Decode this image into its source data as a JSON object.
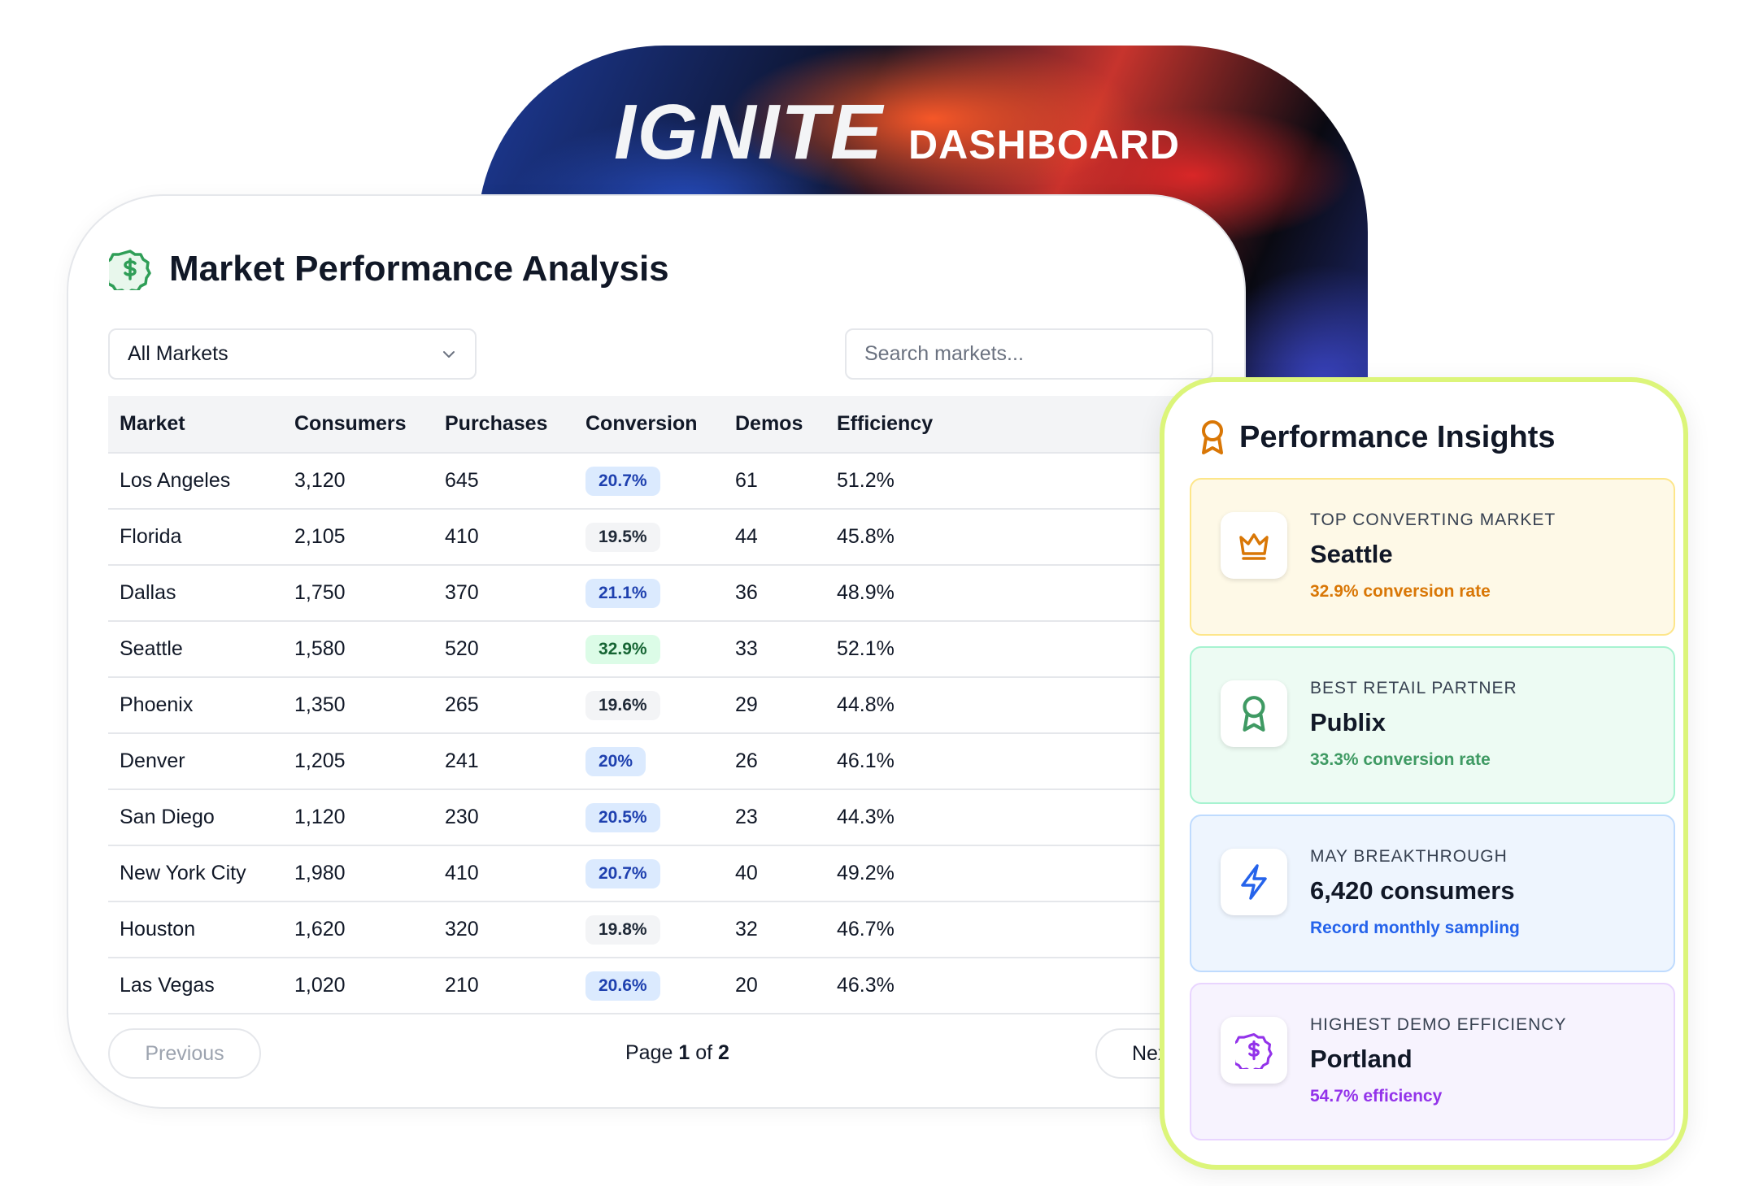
{
  "header": {
    "brand": "IGNITE",
    "subtitle": "DASHBOARD"
  },
  "main": {
    "title": "Market Performance Analysis",
    "filter": {
      "selected": "All Markets"
    },
    "search": {
      "placeholder": "Search markets..."
    },
    "columns": [
      "Market",
      "Consumers",
      "Purchases",
      "Conversion",
      "Demos",
      "Efficiency"
    ],
    "rows": [
      {
        "market": "Los Angeles",
        "consumers": "3,120",
        "purchases": "645",
        "conversion": "20.7%",
        "demos": "61",
        "efficiency": "51.2%"
      },
      {
        "market": "Florida",
        "consumers": "2,105",
        "purchases": "410",
        "conversion": "19.5%",
        "demos": "44",
        "efficiency": "45.8%"
      },
      {
        "market": "Dallas",
        "consumers": "1,750",
        "purchases": "370",
        "conversion": "21.1%",
        "demos": "36",
        "efficiency": "48.9%"
      },
      {
        "market": "Seattle",
        "consumers": "1,580",
        "purchases": "520",
        "conversion": "32.9%",
        "demos": "33",
        "efficiency": "52.1%"
      },
      {
        "market": "Phoenix",
        "consumers": "1,350",
        "purchases": "265",
        "conversion": "19.6%",
        "demos": "29",
        "efficiency": "44.8%"
      },
      {
        "market": "Denver",
        "consumers": "1,205",
        "purchases": "241",
        "conversion": "20%",
        "demos": "26",
        "efficiency": "46.1%"
      },
      {
        "market": "San Diego",
        "consumers": "1,120",
        "purchases": "230",
        "conversion": "20.5%",
        "demos": "23",
        "efficiency": "44.3%"
      },
      {
        "market": "New York City",
        "consumers": "1,980",
        "purchases": "410",
        "conversion": "20.7%",
        "demos": "40",
        "efficiency": "49.2%"
      },
      {
        "market": "Houston",
        "consumers": "1,620",
        "purchases": "320",
        "conversion": "19.8%",
        "demos": "32",
        "efficiency": "46.7%"
      },
      {
        "market": "Las Vegas",
        "consumers": "1,020",
        "purchases": "210",
        "conversion": "20.6%",
        "demos": "20",
        "efficiency": "46.3%"
      }
    ],
    "conversion_badge_styles": [
      "blue",
      "gray",
      "blue",
      "green",
      "gray",
      "blue",
      "blue",
      "blue",
      "gray",
      "blue"
    ],
    "pagination": {
      "previous": "Previous",
      "next": "Next",
      "page_word": "Page",
      "current": "1",
      "of_word": "of",
      "total": "2"
    }
  },
  "insights": {
    "title": "Performance Insights",
    "cards": [
      {
        "icon": "crown-icon",
        "label": "TOP CONVERTING MARKET",
        "value": "Seattle",
        "sub": "32.9% conversion rate",
        "accent": "#d97706",
        "bg": "#fef9e7",
        "border": "#fde68a"
      },
      {
        "icon": "award-icon",
        "label": "BEST RETAIL PARTNER",
        "value": "Publix",
        "sub": "33.3% conversion rate",
        "accent": "#3f9a63",
        "bg": "#edfbf3",
        "border": "#a7f3d0"
      },
      {
        "icon": "lightning-icon",
        "label": "MAY BREAKTHROUGH",
        "value": "6,420 consumers",
        "sub": "Record monthly sampling",
        "accent": "#2563eb",
        "bg": "#eef5fe",
        "border": "#bfdbfe"
      },
      {
        "icon": "dollar-badge-icon",
        "label": "HIGHEST DEMO EFFICIENCY",
        "value": "Portland",
        "sub": "54.7% efficiency",
        "accent": "#9333ea",
        "bg": "#f7f3fe",
        "border": "#e9d5ff"
      }
    ]
  }
}
